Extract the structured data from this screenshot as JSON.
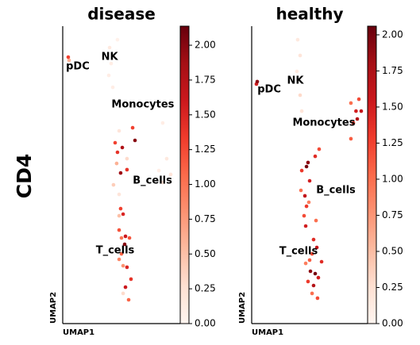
{
  "row_label": "CD4",
  "chart_data": [
    {
      "type": "scatter",
      "title": "disease",
      "xlabel": "UMAP1",
      "ylabel": "UMAP2",
      "cmap": "Reds",
      "xlim": [
        0,
        10
      ],
      "ylim": [
        0,
        20
      ],
      "clim": [
        0,
        2.137
      ],
      "cticks": [
        {
          "value": 0,
          "label": "0.00"
        },
        {
          "value": 0.25,
          "label": "0.25"
        },
        {
          "value": 0.5,
          "label": "0.50"
        },
        {
          "value": 0.75,
          "label": "0.75"
        },
        {
          "value": 1,
          "label": "1.00"
        },
        {
          "value": 1.25,
          "label": "1.25"
        },
        {
          "value": 1.5,
          "label": "1.50"
        },
        {
          "value": 1.75,
          "label": "1.75"
        },
        {
          "value": 2,
          "label": "2.00"
        }
      ],
      "x": [
        0.47,
        0.54,
        3.99,
        4.12,
        3.92,
        4.26,
        4.66,
        8.51,
        8.85,
        9.19,
        8.51,
        8.18,
        4.8,
        5.95,
        6.15,
        4.46,
        5.07,
        4.66,
        5.47,
        4.59,
        5.47,
        4.93,
        4.32,
        4.8,
        4.93,
        4.8,
        5.14,
        4.8,
        5.34,
        5.68,
        5.0,
        5.27,
        5.0,
        4.8,
        5.14,
        5.47,
        5.81,
        5.34,
        5.61,
        5.14
      ],
      "y": [
        17.92,
        17.71,
        18.56,
        17.49,
        16.69,
        15.89,
        19.09,
        13.49,
        11.09,
        10.03,
        9.49,
        10.29,
        12.96,
        13.17,
        12.32,
        12.16,
        11.84,
        11.52,
        11.09,
        10.77,
        10.35,
        10.13,
        9.33,
        8.69,
        7.73,
        7.25,
        7.36,
        6.29,
        5.87,
        5.76,
        5.76,
        5.33,
        4.69,
        4.32,
        3.89,
        3.79,
        2.99,
        2.45,
        1.6,
        2.03
      ],
      "values": [
        1.3,
        0.6,
        0.15,
        0.1,
        0.1,
        0.1,
        0.05,
        0.1,
        0.15,
        0.2,
        0.2,
        0.1,
        0.2,
        1.3,
        2.0,
        1.3,
        1.8,
        1.4,
        0.3,
        0.6,
        1.4,
        1.9,
        0.4,
        0.2,
        1.3,
        0.5,
        1.5,
        1.2,
        1.6,
        1.2,
        1.0,
        2.0,
        1.1,
        0.9,
        0.8,
        1.5,
        1.4,
        1.6,
        1.1,
        0.3
      ],
      "annotations": [
        {
          "text": "pDC",
          "x": 1.28,
          "y": 17.28
        },
        {
          "text": "NK",
          "x": 3.99,
          "y": 17.92
        },
        {
          "text": "Monocytes",
          "x": 6.82,
          "y": 14.72
        },
        {
          "text": "B_cells",
          "x": 7.64,
          "y": 9.6
        },
        {
          "text": "T_cells",
          "x": 4.46,
          "y": 4.91
        }
      ]
    },
    {
      "type": "scatter",
      "title": "healthy",
      "xlabel": "UMAP1",
      "ylabel": "UMAP2",
      "cmap": "Reds",
      "xlim": [
        0,
        10
      ],
      "ylim": [
        0,
        20
      ],
      "clim": [
        0,
        2.06
      ],
      "cticks": [
        {
          "value": 0,
          "label": "0.00"
        },
        {
          "value": 0.25,
          "label": "0.25"
        },
        {
          "value": 0.5,
          "label": "0.50"
        },
        {
          "value": 0.75,
          "label": "0.75"
        },
        {
          "value": 1,
          "label": "1.00"
        },
        {
          "value": 1.25,
          "label": "1.25"
        },
        {
          "value": 1.5,
          "label": "1.50"
        },
        {
          "value": 1.75,
          "label": "1.75"
        },
        {
          "value": 2,
          "label": "2.00"
        }
      ],
      "x": [
        0.48,
        0.41,
        3.97,
        4.18,
        3.9,
        4.18,
        4.32,
        9.25,
        9.0,
        9.45,
        8.56,
        8.77,
        9.11,
        8.56,
        5.82,
        5.48,
        4.86,
        4.73,
        4.32,
        5.0,
        4.25,
        4.59,
        4.73,
        4.52,
        4.93,
        4.66,
        5.55,
        5.34,
        5.62,
        5.21,
        5.07,
        5.48,
        5.75,
        4.86,
        5.34,
        5.0,
        5.68,
        5.21,
        4.66,
        6.03
      ],
      "y": [
        16.27,
        16.11,
        19.09,
        18.03,
        16.96,
        15.36,
        14.29,
        15.09,
        14.29,
        14.29,
        14.83,
        13.49,
        13.76,
        12.43,
        11.73,
        11.25,
        10.83,
        10.56,
        10.29,
        9.6,
        8.96,
        8.59,
        7.89,
        7.25,
        8.16,
        6.56,
        6.93,
        5.65,
        5.12,
        4.69,
        3.52,
        3.36,
        3.09,
        2.83,
        2.56,
        4.27,
        1.71,
        2.03,
        4.05,
        4.16
      ],
      "values": [
        1.9,
        1.5,
        0.15,
        0.2,
        0.15,
        0.3,
        0.2,
        1.2,
        1.5,
        1.6,
        1.0,
        1.3,
        1.7,
        1.1,
        1.2,
        1.4,
        1.9,
        2.0,
        1.3,
        1.5,
        1.0,
        1.6,
        1.3,
        1.2,
        0.9,
        1.5,
        1.0,
        1.4,
        1.6,
        1.2,
        1.9,
        2.0,
        1.5,
        1.3,
        1.7,
        1.1,
        1.2,
        1.0,
        0.9,
        1.4
      ],
      "annotations": [
        {
          "text": "pDC",
          "x": 1.51,
          "y": 15.73
        },
        {
          "text": "NK",
          "x": 3.77,
          "y": 16.32
        },
        {
          "text": "Monocytes",
          "x": 6.23,
          "y": 13.49
        },
        {
          "text": "B_cells",
          "x": 7.26,
          "y": 8.96
        },
        {
          "text": "T_cells",
          "x": 4.04,
          "y": 4.85
        }
      ]
    }
  ]
}
